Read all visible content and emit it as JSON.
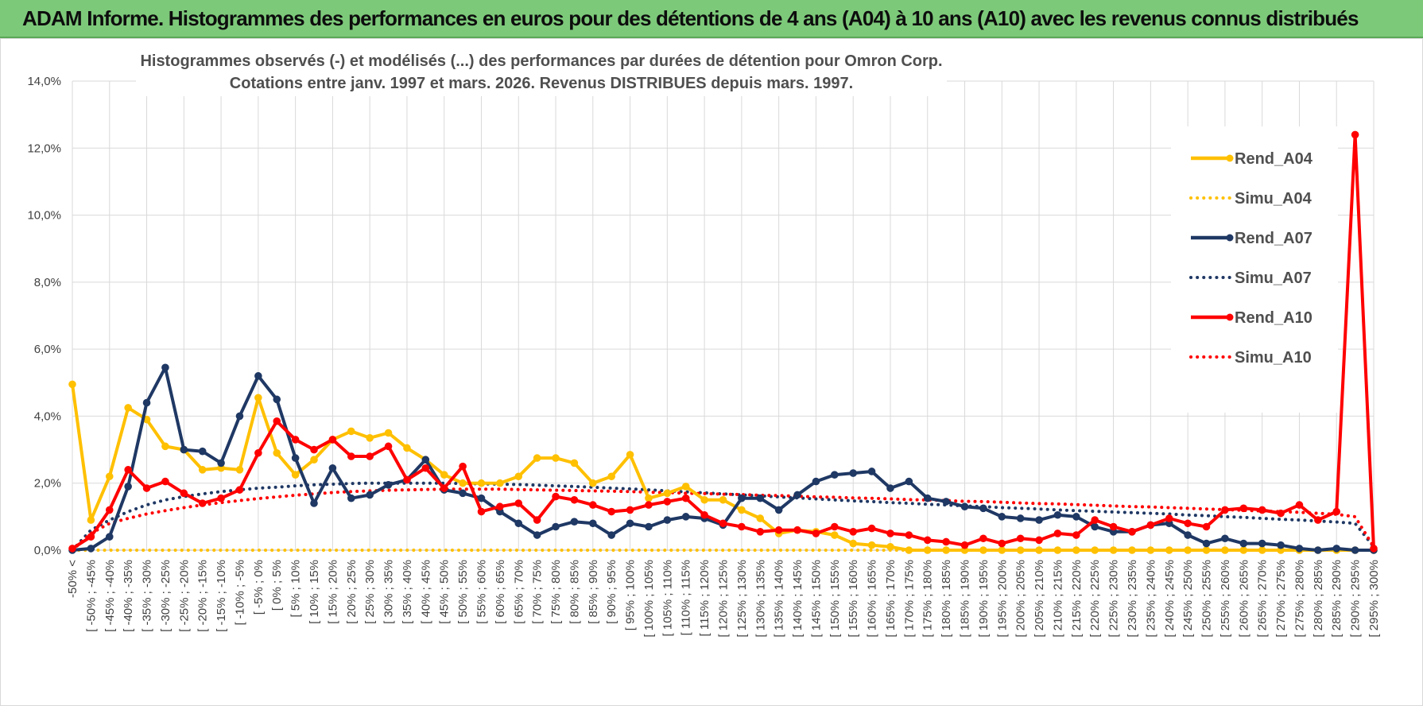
{
  "banner": {
    "title": "ADAM Informe. Histogrammes des performances en euros pour des détentions de 4 ans (A04) à 10 ans (A10) avec les revenus connus distribués"
  },
  "chart_data": {
    "type": "line",
    "title_line1": "Histogrammes observés (-) et modélisés (...) des performances par durées de détention pour Omron Corp.",
    "title_line2": "Cotations entre janv. 1997 et mars. 2026.  Revenus DISTRIBUES depuis mars. 1997.",
    "ylim": [
      0,
      14
    ],
    "yticks": [
      "0,0%",
      "2,0%",
      "4,0%",
      "6,0%",
      "8,0%",
      "10,0%",
      "12,0%",
      "14,0%"
    ],
    "categories": [
      "-50% <",
      "[ -50% ; -45%",
      "[ -45% ; -40%",
      "[ -40% ; -35%",
      "[ -35% ; -30%",
      "[ -30% ; -25%",
      "[ -25% ; -20%",
      "[ -20% ; -15%",
      "[ -15% ; -10%",
      "[ -10% ; -5%",
      "[ -5% ; 0%",
      "[ 0% ; 5%",
      "[ 5% ; 10%",
      "[ 10% ; 15%",
      "[ 15% ; 20%",
      "[ 20% ; 25%",
      "[ 25% ; 30%",
      "[ 30% ; 35%",
      "[ 35% ; 40%",
      "[ 40% ; 45%",
      "[ 45% ; 50%",
      "[ 50% ; 55%",
      "[ 55% ; 60%",
      "[ 60% ; 65%",
      "[ 65% ; 70%",
      "[ 70% ; 75%",
      "[ 75% ; 80%",
      "[ 80% ; 85%",
      "[ 85% ; 90%",
      "[ 90% ; 95%",
      "[ 95% ; 100%",
      "[ 100% ; 105%",
      "[ 105% ; 110%",
      "[ 110% ; 115%",
      "[ 115% ; 120%",
      "[ 120% ; 125%",
      "[ 125% ; 130%",
      "[ 130% ; 135%",
      "[ 135% ; 140%",
      "[ 140% ; 145%",
      "[ 145% ; 150%",
      "[ 150% ; 155%",
      "[ 155% ; 160%",
      "[ 160% ; 165%",
      "[ 165% ; 170%",
      "[ 170% ; 175%",
      "[ 175% ; 180%",
      "[ 180% ; 185%",
      "[ 185% ; 190%",
      "[ 190% ; 195%",
      "[ 195% ; 200%",
      "[ 200% ; 205%",
      "[ 205% ; 210%",
      "[ 210% ; 215%",
      "[ 215% ; 220%",
      "[ 220% ; 225%",
      "[ 225% ; 230%",
      "[ 230% ; 235%",
      "[ 235% ; 240%",
      "[ 240% ; 245%",
      "[ 245% ; 250%",
      "[ 250% ; 255%",
      "[ 255% ; 260%",
      "[ 260% ; 265%",
      "[ 265% ; 270%",
      "[ 270% ; 275%",
      "[ 275% ; 280%",
      "[ 280% ; 285%",
      "[ 285% ; 290%",
      "[ 290% ; 295%",
      "[ 295% ; 300%"
    ],
    "series": [
      {
        "name": "Rend_A04",
        "color": "#ffc000",
        "style": "solid",
        "values": [
          4.95,
          0.9,
          2.2,
          4.25,
          3.9,
          3.1,
          3.0,
          2.4,
          2.45,
          2.4,
          4.55,
          2.9,
          2.25,
          2.7,
          3.3,
          3.55,
          3.35,
          3.5,
          3.05,
          2.7,
          2.25,
          2.0,
          2.0,
          2.0,
          2.2,
          2.75,
          2.75,
          2.6,
          2.0,
          2.2,
          2.85,
          1.55,
          1.7,
          1.9,
          1.5,
          1.5,
          1.2,
          0.95,
          0.5,
          0.6,
          0.55,
          0.45,
          0.2,
          0.15,
          0.1,
          0.0,
          0.0,
          0.0,
          0.0,
          0.0,
          0.0,
          0.0,
          0.0,
          0.0,
          0.0,
          0.0,
          0.0,
          0.0,
          0.0,
          0.0,
          0.0,
          0.0,
          0.0,
          0.0,
          0.0,
          0.0,
          0.0,
          0.0,
          0.0,
          0.0,
          0.0
        ]
      },
      {
        "name": "Simu_A04",
        "color": "#ffc000",
        "style": "dotted",
        "values": [
          0.0,
          0.0,
          0.0,
          0.0,
          0.0,
          0.0,
          0.0,
          0.0,
          0.0,
          0.0,
          0.0,
          0.0,
          0.0,
          0.0,
          0.0,
          0.0,
          0.0,
          0.0,
          0.0,
          0.0,
          0.0,
          0.0,
          0.0,
          0.0,
          0.0,
          0.0,
          0.0,
          0.0,
          0.0,
          0.0,
          0.0,
          0.0,
          0.0,
          0.0,
          0.0,
          0.0,
          0.0,
          0.0,
          0.0,
          0.0,
          0.0,
          0.0,
          0.0,
          0.0,
          0.0,
          0.0,
          0.0,
          0.0,
          0.0,
          0.0,
          0.0,
          0.0,
          0.0,
          0.0,
          0.0,
          0.0,
          0.0,
          0.0,
          0.0,
          0.0,
          0.0,
          0.0,
          0.0,
          0.0,
          0.0,
          0.0,
          0.0,
          0.0,
          0.0,
          0.0,
          0.0
        ]
      },
      {
        "name": "Rend_A07",
        "color": "#1f3864",
        "style": "solid",
        "values": [
          0.0,
          0.05,
          0.4,
          1.9,
          4.4,
          5.45,
          3.0,
          2.95,
          2.6,
          4.0,
          5.2,
          4.5,
          2.75,
          1.4,
          2.45,
          1.55,
          1.65,
          1.95,
          2.1,
          2.7,
          1.8,
          1.7,
          1.55,
          1.15,
          0.8,
          0.45,
          0.7,
          0.85,
          0.8,
          0.45,
          0.8,
          0.7,
          0.9,
          1.0,
          0.95,
          0.75,
          1.55,
          1.55,
          1.2,
          1.65,
          2.05,
          2.25,
          2.3,
          2.35,
          1.85,
          2.05,
          1.55,
          1.45,
          1.3,
          1.25,
          1.0,
          0.95,
          0.9,
          1.05,
          1.0,
          0.7,
          0.55,
          0.55,
          0.75,
          0.8,
          0.45,
          0.2,
          0.35,
          0.2,
          0.2,
          0.15,
          0.05,
          0.0,
          0.05,
          0.0,
          0.0
        ]
      },
      {
        "name": "Simu_A07",
        "color": "#1f3864",
        "style": "dotted",
        "values": [
          0.0,
          0.6,
          0.9,
          1.15,
          1.35,
          1.5,
          1.6,
          1.68,
          1.75,
          1.8,
          1.85,
          1.88,
          1.92,
          1.95,
          1.97,
          1.99,
          2.0,
          2.0,
          2.0,
          2.0,
          2.0,
          1.99,
          1.98,
          1.97,
          1.96,
          1.94,
          1.92,
          1.9,
          1.88,
          1.85,
          1.83,
          1.8,
          1.77,
          1.74,
          1.71,
          1.68,
          1.65,
          1.62,
          1.59,
          1.56,
          1.53,
          1.5,
          1.47,
          1.45,
          1.42,
          1.4,
          1.37,
          1.35,
          1.32,
          1.3,
          1.27,
          1.25,
          1.23,
          1.2,
          1.18,
          1.16,
          1.14,
          1.12,
          1.1,
          1.08,
          1.05,
          1.03,
          1.0,
          0.98,
          0.95,
          0.92,
          0.9,
          0.87,
          0.84,
          0.8,
          0.1
        ]
      },
      {
        "name": "Rend_A10",
        "color": "#ff0000",
        "style": "solid",
        "values": [
          0.05,
          0.4,
          1.2,
          2.4,
          1.85,
          2.05,
          1.7,
          1.4,
          1.55,
          1.8,
          2.9,
          3.85,
          3.3,
          3.0,
          3.3,
          2.8,
          2.8,
          3.1,
          2.1,
          2.45,
          1.85,
          2.5,
          1.15,
          1.3,
          1.4,
          0.9,
          1.6,
          1.5,
          1.35,
          1.15,
          1.2,
          1.35,
          1.45,
          1.55,
          1.05,
          0.8,
          0.7,
          0.55,
          0.6,
          0.6,
          0.5,
          0.7,
          0.55,
          0.65,
          0.5,
          0.45,
          0.3,
          0.25,
          0.15,
          0.35,
          0.2,
          0.35,
          0.3,
          0.5,
          0.45,
          0.9,
          0.7,
          0.55,
          0.75,
          0.95,
          0.8,
          0.7,
          1.2,
          1.25,
          1.2,
          1.1,
          1.35,
          0.9,
          1.15,
          12.4,
          0.05
        ]
      },
      {
        "name": "Simu_A10",
        "color": "#ff0000",
        "style": "dotted",
        "values": [
          0.0,
          0.5,
          0.8,
          0.95,
          1.08,
          1.18,
          1.27,
          1.35,
          1.42,
          1.48,
          1.54,
          1.59,
          1.64,
          1.68,
          1.72,
          1.75,
          1.77,
          1.79,
          1.8,
          1.81,
          1.82,
          1.82,
          1.82,
          1.82,
          1.81,
          1.8,
          1.79,
          1.78,
          1.77,
          1.76,
          1.75,
          1.73,
          1.72,
          1.7,
          1.69,
          1.67,
          1.66,
          1.64,
          1.63,
          1.61,
          1.59,
          1.58,
          1.56,
          1.55,
          1.53,
          1.51,
          1.5,
          1.48,
          1.46,
          1.45,
          1.43,
          1.41,
          1.39,
          1.38,
          1.36,
          1.34,
          1.32,
          1.3,
          1.29,
          1.27,
          1.25,
          1.23,
          1.21,
          1.19,
          1.17,
          1.15,
          1.13,
          1.1,
          1.07,
          1.0,
          0.1
        ]
      }
    ],
    "legend": [
      "Rend_A04",
      "Simu_A04",
      "Rend_A07",
      "Simu_A07",
      "Rend_A10",
      "Simu_A10"
    ]
  }
}
